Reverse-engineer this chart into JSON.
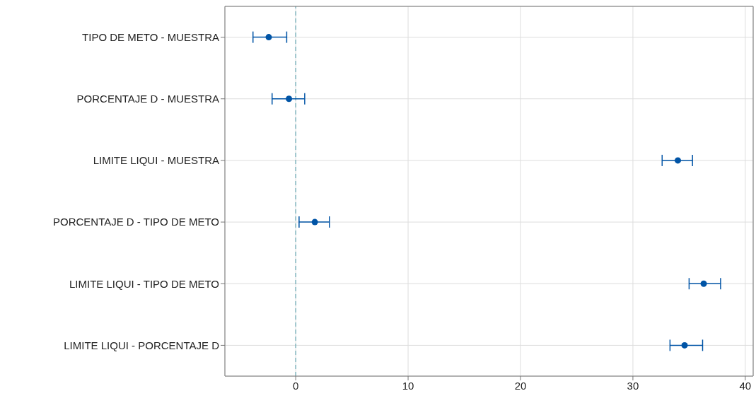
{
  "chart_data": {
    "type": "scatter",
    "orientation": "horizontal",
    "categories": [
      "TIPO DE METO - MUESTRA",
      "PORCENTAJE D - MUESTRA",
      "LIMITE LIQUI - MUESTRA",
      "PORCENTAJE D - TIPO DE METO",
      "LIMITE LIQUI - TIPO DE METO",
      "LIMITE LIQUI - PORCENTAJE D"
    ],
    "values": [
      -2.4,
      -0.6,
      34.0,
      1.7,
      36.3,
      34.6
    ],
    "errors": [
      [
        -3.8,
        -0.8
      ],
      [
        -2.1,
        0.8
      ],
      [
        32.6,
        35.3
      ],
      [
        0.3,
        3.0
      ],
      [
        35.0,
        37.8
      ],
      [
        33.3,
        36.2
      ]
    ],
    "color": "#0054a6",
    "xlim": [
      -6.3,
      40.7
    ],
    "xticks": [
      0,
      10,
      20,
      30,
      40
    ],
    "ref_lines": [
      {
        "axis": "x",
        "value": 0,
        "color": "#4a9aa8",
        "line_style": "dashed"
      }
    ],
    "grid": true,
    "marker": "circle"
  }
}
